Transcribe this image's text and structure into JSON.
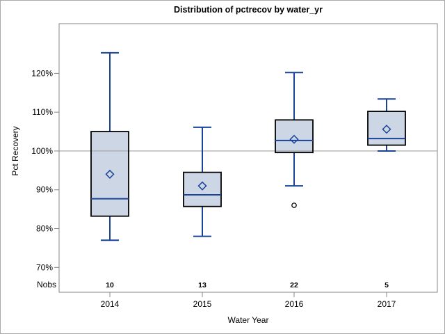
{
  "chart_data": {
    "type": "boxplot",
    "title": "Distribution of pctrecov by water_yr",
    "xlabel": "Water Year",
    "ylabel": "Pct Recovery",
    "nobs_label": "Nobs",
    "categories": [
      "2014",
      "2015",
      "2016",
      "2017"
    ],
    "nobs": [
      10,
      13,
      22,
      5
    ],
    "y_ticks": [
      70,
      80,
      90,
      100,
      110,
      120
    ],
    "y_tick_labels": [
      "70%",
      "80%",
      "90%",
      "100%",
      "110%",
      "120%"
    ],
    "ylim": [
      63.6,
      132.8
    ],
    "reference_line": 100,
    "grid": "off",
    "legend": "none",
    "series": [
      {
        "category": "2014",
        "whisker_low": 77,
        "q1": 83.2,
        "median": 87.7,
        "q3": 105,
        "whisker_high": 125.3,
        "mean": 94,
        "outliers": []
      },
      {
        "category": "2015",
        "whisker_low": 78,
        "q1": 85.7,
        "median": 88.7,
        "q3": 94.5,
        "whisker_high": 106.1,
        "mean": 91,
        "outliers": []
      },
      {
        "category": "2016",
        "whisker_low": 91,
        "q1": 99.6,
        "median": 102.7,
        "q3": 108,
        "whisker_high": 120.2,
        "mean": 103,
        "outliers": [
          86
        ]
      },
      {
        "category": "2017",
        "whisker_low": 100,
        "q1": 101.5,
        "median": 103.2,
        "q3": 110.2,
        "whisker_high": 113.4,
        "mean": 105.6,
        "outliers": []
      }
    ],
    "colors": {
      "box_fill": "#ccd6e4",
      "box_border": "#000000",
      "whisker": "#1a4398",
      "median": "#1a4398",
      "mean_marker": "#1a4398",
      "outlier": "#000000",
      "reference_line": "#a3a3a3",
      "frame": "#848484",
      "tick": "#848484",
      "text": "#000000"
    }
  }
}
